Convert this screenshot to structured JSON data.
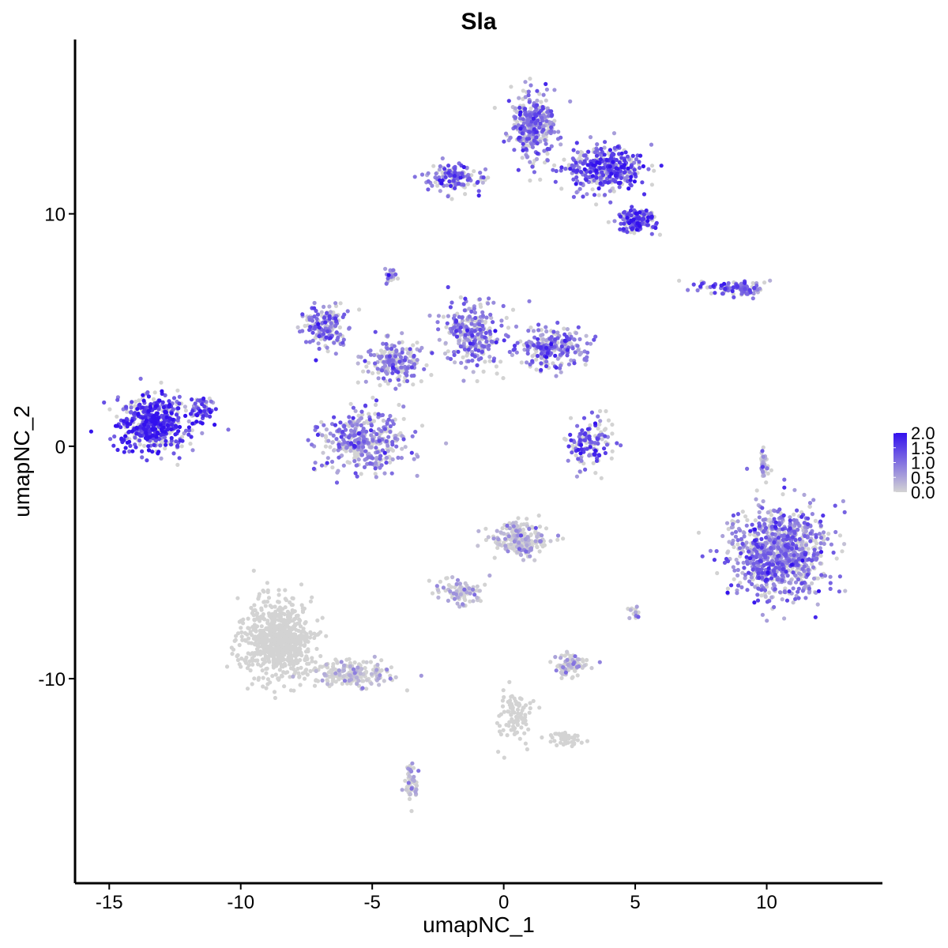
{
  "chart_data": {
    "type": "scatter",
    "title": "Sla",
    "xlabel": "umapNC_1",
    "ylabel": "umapNC_2",
    "xlim": [
      -16.3,
      14.4
    ],
    "ylim": [
      -18.8,
      17.5
    ],
    "x_ticks": [
      -15,
      -10,
      -5,
      0,
      5,
      10
    ],
    "y_ticks": [
      -10,
      0,
      10
    ],
    "x_tick_labels": [
      "-15",
      "-10",
      "-5",
      "0",
      "5",
      "10"
    ],
    "y_tick_labels": [
      "-10",
      "0",
      "10"
    ],
    "grid": false,
    "legend": {
      "position": "right",
      "type": "colorbar",
      "min": 0.0,
      "max": 2.0,
      "ticks": [
        0.0,
        0.5,
        1.0,
        1.5,
        2.0
      ],
      "tick_labels": [
        "0.0",
        "0.5",
        "1.0",
        "1.5",
        "2.0"
      ],
      "low_color": "#d3d3d3",
      "high_color": "#3311ee"
    },
    "clusters": [
      {
        "center": [
          -13.3,
          1.0
        ],
        "spread": [
          1.1,
          1.0
        ],
        "n": 520,
        "mean_expr": 1.55
      },
      {
        "center": [
          -11.5,
          1.6
        ],
        "spread": [
          0.5,
          0.6
        ],
        "n": 60,
        "mean_expr": 1.3
      },
      {
        "center": [
          -6.8,
          5.2
        ],
        "spread": [
          0.7,
          0.8
        ],
        "n": 160,
        "mean_expr": 1.0
      },
      {
        "center": [
          -5.4,
          0.2
        ],
        "spread": [
          1.4,
          1.1
        ],
        "n": 380,
        "mean_expr": 0.8
      },
      {
        "center": [
          -4.2,
          3.6
        ],
        "spread": [
          1.0,
          0.8
        ],
        "n": 200,
        "mean_expr": 0.8
      },
      {
        "center": [
          -1.2,
          4.8
        ],
        "spread": [
          1.0,
          1.1
        ],
        "n": 280,
        "mean_expr": 0.9
      },
      {
        "center": [
          1.8,
          4.2
        ],
        "spread": [
          1.1,
          0.7
        ],
        "n": 240,
        "mean_expr": 0.9
      },
      {
        "center": [
          -4.3,
          7.3
        ],
        "spread": [
          0.2,
          0.3
        ],
        "n": 25,
        "mean_expr": 0.9
      },
      {
        "center": [
          1.1,
          13.8
        ],
        "spread": [
          0.7,
          1.2
        ],
        "n": 330,
        "mean_expr": 0.9
      },
      {
        "center": [
          3.8,
          11.9
        ],
        "spread": [
          1.2,
          0.8
        ],
        "n": 380,
        "mean_expr": 1.3
      },
      {
        "center": [
          5.1,
          9.7
        ],
        "spread": [
          0.6,
          0.4
        ],
        "n": 150,
        "mean_expr": 1.4
      },
      {
        "center": [
          -1.9,
          11.6
        ],
        "spread": [
          0.8,
          0.5
        ],
        "n": 140,
        "mean_expr": 1.0
      },
      {
        "center": [
          3.3,
          0.2
        ],
        "spread": [
          0.8,
          0.9
        ],
        "n": 130,
        "mean_expr": 1.2
      },
      {
        "center": [
          8.8,
          6.8
        ],
        "spread": [
          1.1,
          0.25
        ],
        "n": 110,
        "mean_expr": 1.1
      },
      {
        "center": [
          10.5,
          -4.6
        ],
        "spread": [
          1.5,
          1.6
        ],
        "n": 900,
        "mean_expr": 0.85
      },
      {
        "center": [
          -8.6,
          -8.3
        ],
        "spread": [
          1.1,
          1.4
        ],
        "n": 700,
        "mean_expr": 0.0
      },
      {
        "center": [
          -5.8,
          -9.8
        ],
        "spread": [
          1.3,
          0.5
        ],
        "n": 200,
        "mean_expr": 0.02
      },
      {
        "center": [
          0.6,
          -4.0
        ],
        "spread": [
          0.9,
          0.6
        ],
        "n": 240,
        "mean_expr": 0.12
      },
      {
        "center": [
          -1.7,
          -6.3
        ],
        "spread": [
          0.7,
          0.5
        ],
        "n": 90,
        "mean_expr": 0.15
      },
      {
        "center": [
          2.5,
          -9.4
        ],
        "spread": [
          0.5,
          0.4
        ],
        "n": 90,
        "mean_expr": 0.1
      },
      {
        "center": [
          -3.5,
          -14.6
        ],
        "spread": [
          0.2,
          0.7
        ],
        "n": 55,
        "mean_expr": 0.1
      },
      {
        "center": [
          0.4,
          -11.5
        ],
        "spread": [
          0.5,
          1.0
        ],
        "n": 90,
        "mean_expr": 0.0
      },
      {
        "center": [
          2.3,
          -12.5
        ],
        "spread": [
          0.5,
          0.3
        ],
        "n": 45,
        "mean_expr": 0.0
      },
      {
        "center": [
          9.9,
          -0.8
        ],
        "spread": [
          0.15,
          0.6
        ],
        "n": 35,
        "mean_expr": 0.35
      },
      {
        "center": [
          5.0,
          -7.2
        ],
        "spread": [
          0.2,
          0.2
        ],
        "n": 15,
        "mean_expr": 0.3
      }
    ]
  }
}
